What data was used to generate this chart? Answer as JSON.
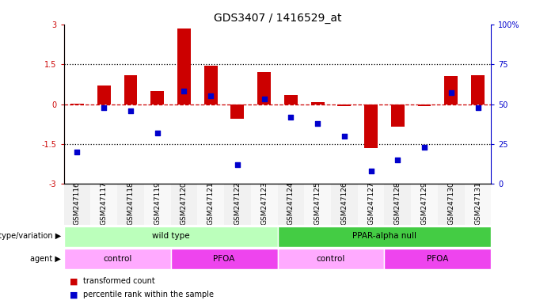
{
  "title": "GDS3407 / 1416529_at",
  "samples": [
    "GSM247116",
    "GSM247117",
    "GSM247118",
    "GSM247119",
    "GSM247120",
    "GSM247121",
    "GSM247122",
    "GSM247123",
    "GSM247124",
    "GSM247125",
    "GSM247126",
    "GSM247127",
    "GSM247128",
    "GSM247129",
    "GSM247130",
    "GSM247131"
  ],
  "transformed_count": [
    0.02,
    0.7,
    1.1,
    0.5,
    2.85,
    1.45,
    -0.55,
    1.2,
    0.35,
    0.07,
    -0.07,
    -1.65,
    -0.85,
    -0.07,
    1.05,
    1.1
  ],
  "percentile_rank_raw": [
    20,
    48,
    46,
    32,
    58,
    55,
    12,
    53,
    42,
    38,
    30,
    8,
    15,
    23,
    57,
    48
  ],
  "ylim_left": [
    -3,
    3
  ],
  "ylim_right": [
    0,
    100
  ],
  "yticks_left": [
    -3,
    -1.5,
    0,
    1.5,
    3
  ],
  "yticks_right": [
    0,
    25,
    50,
    75,
    100
  ],
  "ytick_labels_left": [
    "-3",
    "-1.5",
    "0",
    "1.5",
    "3"
  ],
  "ytick_labels_right": [
    "0",
    "25",
    "50",
    "75",
    "100%"
  ],
  "bar_color": "#cc0000",
  "dot_color": "#0000cc",
  "zero_line_color": "#cc0000",
  "grid_line_color": "#000000",
  "genotype_groups": [
    {
      "label": "wild type",
      "start": 0,
      "end": 8,
      "color": "#bbffbb"
    },
    {
      "label": "PPAR-alpha null",
      "start": 8,
      "end": 16,
      "color": "#44cc44"
    }
  ],
  "agent_groups": [
    {
      "label": "control",
      "start": 0,
      "end": 4,
      "color": "#ffaaff"
    },
    {
      "label": "PFOA",
      "start": 4,
      "end": 8,
      "color": "#ee44ee"
    },
    {
      "label": "control",
      "start": 8,
      "end": 12,
      "color": "#ffaaff"
    },
    {
      "label": "PFOA",
      "start": 12,
      "end": 16,
      "color": "#ee44ee"
    }
  ],
  "legend_items": [
    {
      "label": "transformed count",
      "color": "#cc0000"
    },
    {
      "label": "percentile rank within the sample",
      "color": "#0000cc"
    }
  ],
  "bar_width": 0.5,
  "dot_size": 25,
  "sample_label_fontsize": 6.5,
  "annotation_fontsize": 7.5
}
